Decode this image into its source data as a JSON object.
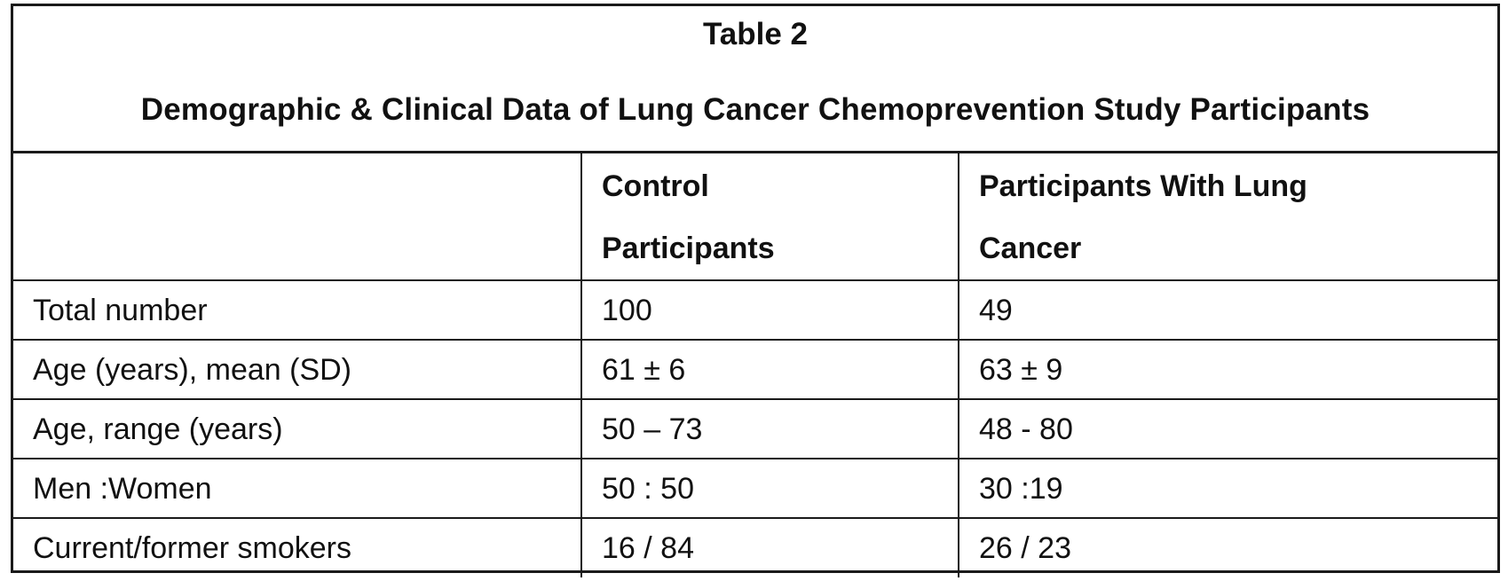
{
  "table": {
    "number": "Table 2",
    "title": "Demographic & Clinical Data of Lung Cancer Chemoprevention Study Participants",
    "columns": [
      "",
      "Control Participants",
      "Participants With Lung Cancer"
    ],
    "column_lines": [
      [],
      [
        "Control",
        "Participants"
      ],
      [
        "Participants With Lung",
        "Cancer"
      ]
    ],
    "rows": [
      [
        "Total number",
        "100",
        "49"
      ],
      [
        "Age (years), mean (SD)",
        "61 ± 6",
        "63 ± 9"
      ],
      [
        "Age, range (years)",
        "50 – 73",
        "48 - 80"
      ],
      [
        "Men :Women",
        "50 : 50",
        "30 :19"
      ],
      [
        "Current/former smokers",
        "16 / 84",
        "26 / 23"
      ]
    ]
  }
}
